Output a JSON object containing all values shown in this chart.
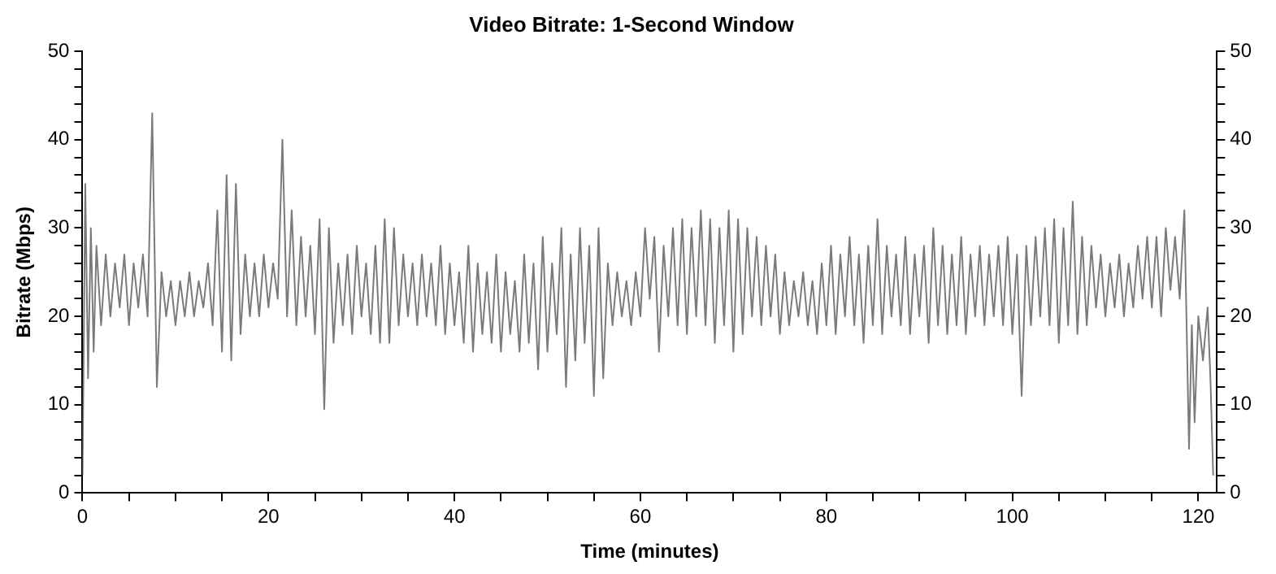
{
  "chart_data": {
    "type": "line",
    "title": "Video Bitrate: 1-Second Window",
    "xlabel": "Time (minutes)",
    "ylabel": "Bitrate (Mbps)",
    "xlim": [
      0,
      122
    ],
    "xticks": [
      0,
      {
        "value": 5,
        "label": null
      },
      {
        "value": 10,
        "label": null
      },
      {
        "value": 15,
        "label": null
      },
      20,
      {
        "value": 25,
        "label": null
      },
      {
        "value": 30,
        "label": null
      },
      {
        "value": 35,
        "label": null
      },
      40,
      {
        "value": 45,
        "label": null
      },
      {
        "value": 50,
        "label": null
      },
      {
        "value": 55,
        "label": null
      },
      60,
      {
        "value": 65,
        "label": null
      },
      {
        "value": 70,
        "label": null
      },
      {
        "value": 75,
        "label": null
      },
      80,
      {
        "value": 85,
        "label": null
      },
      {
        "value": 90,
        "label": null
      },
      {
        "value": 95,
        "label": null
      },
      100,
      {
        "value": 105,
        "label": null
      },
      {
        "value": 110,
        "label": null
      },
      {
        "value": 115,
        "label": null
      },
      120
    ],
    "ylim": [
      0,
      50
    ],
    "yticks": [
      0,
      {
        "value": 2,
        "label": null
      },
      {
        "value": 4,
        "label": null
      },
      {
        "value": 6,
        "label": null
      },
      {
        "value": 8,
        "label": null
      },
      10,
      {
        "value": 12,
        "label": null
      },
      {
        "value": 14,
        "label": null
      },
      {
        "value": 16,
        "label": null
      },
      {
        "value": 18,
        "label": null
      },
      20,
      {
        "value": 22,
        "label": null
      },
      {
        "value": 24,
        "label": null
      },
      {
        "value": 26,
        "label": null
      },
      {
        "value": 28,
        "label": null
      },
      30,
      {
        "value": 32,
        "label": null
      },
      {
        "value": 34,
        "label": null
      },
      {
        "value": 36,
        "label": null
      },
      {
        "value": 38,
        "label": null
      },
      40,
      {
        "value": 42,
        "label": null
      },
      {
        "value": 44,
        "label": null
      },
      {
        "value": 46,
        "label": null
      },
      {
        "value": 48,
        "label": null
      },
      50
    ],
    "y2lim": [
      0,
      50
    ],
    "y2ticks": [
      0,
      {
        "value": 2,
        "label": null
      },
      {
        "value": 4,
        "label": null
      },
      {
        "value": 6,
        "label": null
      },
      {
        "value": 8,
        "label": null
      },
      10,
      {
        "value": 12,
        "label": null
      },
      {
        "value": 14,
        "label": null
      },
      {
        "value": 16,
        "label": null
      },
      {
        "value": 18,
        "label": null
      },
      20,
      {
        "value": 22,
        "label": null
      },
      {
        "value": 24,
        "label": null
      },
      {
        "value": 26,
        "label": null
      },
      {
        "value": 28,
        "label": null
      },
      30,
      {
        "value": 32,
        "label": null
      },
      {
        "value": 34,
        "label": null
      },
      {
        "value": 36,
        "label": null
      },
      {
        "value": 38,
        "label": null
      },
      40,
      {
        "value": 42,
        "label": null
      },
      {
        "value": 44,
        "label": null
      },
      {
        "value": 46,
        "label": null
      },
      {
        "value": 48,
        "label": null
      },
      50
    ],
    "grid": false,
    "legend": false,
    "marker": "none",
    "line_style": "solid",
    "series": [
      {
        "color": "#7a7a7a",
        "x": [
          0,
          0.3,
          0.6,
          0.9,
          1.2,
          1.5,
          2,
          2.5,
          3,
          3.5,
          4,
          4.5,
          5,
          5.5,
          6,
          6.5,
          7,
          7.5,
          8,
          8.5,
          9,
          9.5,
          10,
          10.5,
          11,
          11.5,
          12,
          12.5,
          13,
          13.5,
          14,
          14.5,
          15,
          15.5,
          16,
          16.5,
          17,
          17.5,
          18,
          18.5,
          19,
          19.5,
          20,
          20.5,
          21,
          21.5,
          22,
          22.5,
          23,
          23.5,
          24,
          24.5,
          25,
          25.5,
          26,
          26.5,
          27,
          27.5,
          28,
          28.5,
          29,
          29.5,
          30,
          30.5,
          31,
          31.5,
          32,
          32.5,
          33,
          33.5,
          34,
          34.5,
          35,
          35.5,
          36,
          36.5,
          37,
          37.5,
          38,
          38.5,
          39,
          39.5,
          40,
          40.5,
          41,
          41.5,
          42,
          42.5,
          43,
          43.5,
          44,
          44.5,
          45,
          45.5,
          46,
          46.5,
          47,
          47.5,
          48,
          48.5,
          49,
          49.5,
          50,
          50.5,
          51,
          51.5,
          52,
          52.5,
          53,
          53.5,
          54,
          54.5,
          55,
          55.5,
          56,
          56.5,
          57,
          57.5,
          58,
          58.5,
          59,
          59.5,
          60,
          60.5,
          61,
          61.5,
          62,
          62.5,
          63,
          63.5,
          64,
          64.5,
          65,
          65.5,
          66,
          66.5,
          67,
          67.5,
          68,
          68.5,
          69,
          69.5,
          70,
          70.5,
          71,
          71.5,
          72,
          72.5,
          73,
          73.5,
          74,
          74.5,
          75,
          75.5,
          76,
          76.5,
          77,
          77.5,
          78,
          78.5,
          79,
          79.5,
          80,
          80.5,
          81,
          81.5,
          82,
          82.5,
          83,
          83.5,
          84,
          84.5,
          85,
          85.5,
          86,
          86.5,
          87,
          87.5,
          88,
          88.5,
          89,
          89.5,
          90,
          90.5,
          91,
          91.5,
          92,
          92.5,
          93,
          93.5,
          94,
          94.5,
          95,
          95.5,
          96,
          96.5,
          97,
          97.5,
          98,
          98.5,
          99,
          99.5,
          100,
          100.5,
          101,
          101.5,
          102,
          102.5,
          103,
          103.5,
          104,
          104.5,
          105,
          105.5,
          106,
          106.5,
          107,
          107.5,
          108,
          108.5,
          109,
          109.5,
          110,
          110.5,
          111,
          111.5,
          112,
          112.5,
          113,
          113.5,
          114,
          114.5,
          115,
          115.5,
          116,
          116.5,
          117,
          117.5,
          118,
          118.5,
          119,
          119.3,
          119.6,
          120,
          120.5,
          121,
          121.3,
          121.6
        ],
        "values": [
          2,
          35,
          13,
          30,
          16,
          28,
          19,
          27,
          20,
          26,
          21,
          27,
          19,
          26,
          21,
          27,
          20,
          43,
          12,
          25,
          20,
          24,
          19,
          24,
          20,
          25,
          20,
          24,
          21,
          26,
          19,
          32,
          16,
          36,
          15,
          35,
          18,
          27,
          20,
          26,
          20,
          27,
          21,
          26,
          22,
          40,
          20,
          32,
          19,
          29,
          20,
          28,
          18,
          31,
          9.5,
          30,
          17,
          26,
          19,
          27,
          18,
          28,
          20,
          26,
          18,
          28,
          17,
          31,
          17,
          30,
          19,
          27,
          20,
          26,
          19,
          27,
          20,
          26,
          19,
          28,
          18,
          26,
          19,
          25,
          17,
          28,
          16,
          26,
          18,
          25,
          17,
          27,
          16,
          25,
          18,
          24,
          16,
          27,
          17,
          26,
          14,
          29,
          16,
          26,
          18,
          30,
          12,
          27,
          15,
          30,
          17,
          28,
          11,
          30,
          13,
          26,
          19,
          25,
          20,
          24,
          19,
          25,
          20,
          30,
          22,
          29,
          16,
          28,
          20,
          30,
          19,
          31,
          18,
          30,
          20,
          32,
          19,
          31,
          17,
          30,
          19,
          32,
          16,
          31,
          18,
          30,
          20,
          29,
          19,
          28,
          20,
          27,
          18,
          25,
          19,
          24,
          20,
          25,
          19,
          24,
          18,
          26,
          19,
          28,
          18,
          27,
          20,
          29,
          19,
          27,
          17,
          28,
          19,
          31,
          18,
          28,
          20,
          27,
          19,
          29,
          18,
          27,
          20,
          28,
          17,
          30,
          19,
          28,
          18,
          27,
          19,
          29,
          18,
          27,
          20,
          28,
          19,
          27,
          20,
          28,
          19,
          29,
          18,
          27,
          11,
          28,
          19,
          29,
          20,
          30,
          19,
          31,
          17,
          30,
          19,
          33,
          18,
          29,
          19,
          28,
          21,
          27,
          20,
          26,
          21,
          27,
          20,
          26,
          21,
          28,
          22,
          29,
          21,
          29,
          20,
          30,
          23,
          29,
          22,
          32,
          5,
          19,
          8,
          20,
          15,
          21,
          13,
          2
        ]
      }
    ]
  }
}
